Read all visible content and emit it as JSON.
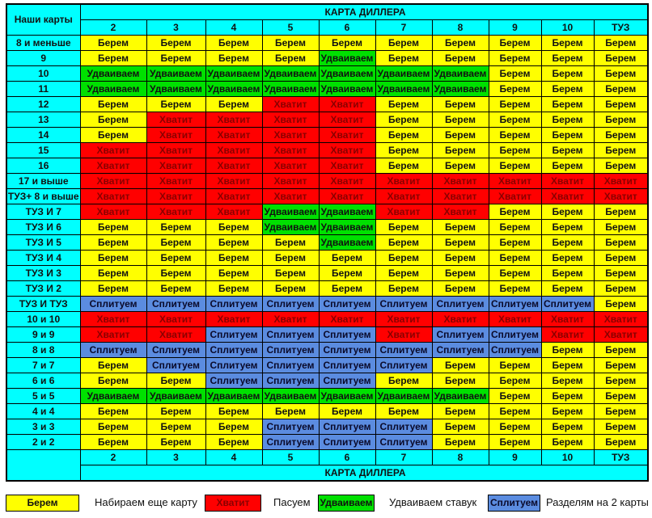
{
  "header": {
    "our_cards": "Наши карты",
    "dealer_card": "КАРТА ДИЛЛЕРА"
  },
  "dealer_columns": [
    "2",
    "3",
    "4",
    "5",
    "6",
    "7",
    "8",
    "9",
    "10",
    "ТУЗ"
  ],
  "colors": {
    "Берем": "#ffff00",
    "Хватит": "#ff0000",
    "Удваиваем": "#00e000",
    "Сплитуем": "#5b8ce0",
    "header": "#00ffff"
  },
  "rows": [
    {
      "hand": "8 и меньше",
      "actions": [
        "Берем",
        "Берем",
        "Берем",
        "Берем",
        "Берем",
        "Берем",
        "Берем",
        "Берем",
        "Берем",
        "Берем"
      ]
    },
    {
      "hand": "9",
      "actions": [
        "Берем",
        "Берем",
        "Берем",
        "Берем",
        "Удваиваем",
        "Берем",
        "Берем",
        "Берем",
        "Берем",
        "Берем"
      ]
    },
    {
      "hand": "10",
      "actions": [
        "Удваиваем",
        "Удваиваем",
        "Удваиваем",
        "Удваиваем",
        "Удваиваем",
        "Удваиваем",
        "Удваиваем",
        "Берем",
        "Берем",
        "Берем"
      ]
    },
    {
      "hand": "11",
      "actions": [
        "Удваиваем",
        "Удваиваем",
        "Удваиваем",
        "Удваиваем",
        "Удваиваем",
        "Удваиваем",
        "Удваиваем",
        "Берем",
        "Берем",
        "Берем"
      ]
    },
    {
      "hand": "12",
      "actions": [
        "Берем",
        "Берем",
        "Берем",
        "Хватит",
        "Хватит",
        "Берем",
        "Берем",
        "Берем",
        "Берем",
        "Берем"
      ]
    },
    {
      "hand": "13",
      "actions": [
        "Берем",
        "Хватит",
        "Хватит",
        "Хватит",
        "Хватит",
        "Берем",
        "Берем",
        "Берем",
        "Берем",
        "Берем"
      ]
    },
    {
      "hand": "14",
      "actions": [
        "Берем",
        "Хватит",
        "Хватит",
        "Хватит",
        "Хватит",
        "Берем",
        "Берем",
        "Берем",
        "Берем",
        "Берем"
      ]
    },
    {
      "hand": "15",
      "actions": [
        "Хватит",
        "Хватит",
        "Хватит",
        "Хватит",
        "Хватит",
        "Берем",
        "Берем",
        "Берем",
        "Берем",
        "Берем"
      ]
    },
    {
      "hand": "16",
      "actions": [
        "Хватит",
        "Хватит",
        "Хватит",
        "Хватит",
        "Хватит",
        "Берем",
        "Берем",
        "Берем",
        "Берем",
        "Берем"
      ]
    },
    {
      "hand": "17 и выше",
      "actions": [
        "Хватит",
        "Хватит",
        "Хватит",
        "Хватит",
        "Хватит",
        "Хватит",
        "Хватит",
        "Хватит",
        "Хватит",
        "Хватит"
      ]
    },
    {
      "hand": "ТУЗ+ 8 и выше",
      "actions": [
        "Хватит",
        "Хватит",
        "Хватит",
        "Хватит",
        "Хватит",
        "Хватит",
        "Хватит",
        "Хватит",
        "Хватит",
        "Хватит"
      ]
    },
    {
      "hand": "ТУЗ И 7",
      "actions": [
        "Хватит",
        "Хватит",
        "Хватит",
        "Удваиваем",
        "Удваиваем",
        "Хватит",
        "Хватит",
        "Берем",
        "Берем",
        "Берем"
      ]
    },
    {
      "hand": "ТУЗ И 6",
      "actions": [
        "Берем",
        "Берем",
        "Берем",
        "Удваиваем",
        "Удваиваем",
        "Берем",
        "Берем",
        "Берем",
        "Берем",
        "Берем"
      ]
    },
    {
      "hand": "ТУЗ И 5",
      "actions": [
        "Берем",
        "Берем",
        "Берем",
        "Берем",
        "Удваиваем",
        "Берем",
        "Берем",
        "Берем",
        "Берем",
        "Берем"
      ]
    },
    {
      "hand": "ТУЗ И 4",
      "actions": [
        "Берем",
        "Берем",
        "Берем",
        "Берем",
        "Берем",
        "Берем",
        "Берем",
        "Берем",
        "Берем",
        "Берем"
      ]
    },
    {
      "hand": "ТУЗ И 3",
      "actions": [
        "Берем",
        "Берем",
        "Берем",
        "Берем",
        "Берем",
        "Берем",
        "Берем",
        "Берем",
        "Берем",
        "Берем"
      ]
    },
    {
      "hand": "ТУЗ И 2",
      "actions": [
        "Берем",
        "Берем",
        "Берем",
        "Берем",
        "Берем",
        "Берем",
        "Берем",
        "Берем",
        "Берем",
        "Берем"
      ]
    },
    {
      "hand": "ТУЗ И ТУЗ",
      "actions": [
        "Сплитуем",
        "Сплитуем",
        "Сплитуем",
        "Сплитуем",
        "Сплитуем",
        "Сплитуем",
        "Сплитуем",
        "Сплитуем",
        "Сплитуем",
        "Берем"
      ]
    },
    {
      "hand": "10 и 10",
      "actions": [
        "Хватит",
        "Хватит",
        "Хватит",
        "Хватит",
        "Хватит",
        "Хватит",
        "Хватит",
        "Хватит",
        "Хватит",
        "Хватит"
      ]
    },
    {
      "hand": "9 и 9",
      "actions": [
        "Хватит",
        "Хватит",
        "Сплитуем",
        "Сплитуем",
        "Сплитуем",
        "Хватит",
        "Сплитуем",
        "Сплитуем",
        "Хватит",
        "Хватит"
      ]
    },
    {
      "hand": "8 и 8",
      "actions": [
        "Сплитуем",
        "Сплитуем",
        "Сплитуем",
        "Сплитуем",
        "Сплитуем",
        "Сплитуем",
        "Сплитуем",
        "Сплитуем",
        "Берем",
        "Берем"
      ]
    },
    {
      "hand": "7 и 7",
      "actions": [
        "Берем",
        "Сплитуем",
        "Сплитуем",
        "Сплитуем",
        "Сплитуем",
        "Сплитуем",
        "Берем",
        "Берем",
        "Берем",
        "Берем"
      ]
    },
    {
      "hand": "6 и 6",
      "actions": [
        "Берем",
        "Берем",
        "Сплитуем",
        "Сплитуем",
        "Сплитуем",
        "Берем",
        "Берем",
        "Берем",
        "Берем",
        "Берем"
      ]
    },
    {
      "hand": "5 и 5",
      "actions": [
        "Удваиваем",
        "Удваиваем",
        "Удваиваем",
        "Удваиваем",
        "Удваиваем",
        "Удваиваем",
        "Удваиваем",
        "Берем",
        "Берем",
        "Берем"
      ]
    },
    {
      "hand": "4 и 4",
      "actions": [
        "Берем",
        "Берем",
        "Берем",
        "Берем",
        "Берем",
        "Берем",
        "Берем",
        "Берем",
        "Берем",
        "Берем"
      ]
    },
    {
      "hand": "3 и 3",
      "actions": [
        "Берем",
        "Берем",
        "Берем",
        "Сплитуем",
        "Сплитуем",
        "Сплитуем",
        "Берем",
        "Берем",
        "Берем",
        "Берем"
      ]
    },
    {
      "hand": "2 и 2",
      "actions": [
        "Берем",
        "Берем",
        "Берем",
        "Сплитуем",
        "Сплитуем",
        "Сплитуем",
        "Берем",
        "Берем",
        "Берем",
        "Берем"
      ]
    }
  ],
  "legend": [
    {
      "label": "Берем",
      "description": "Набираем еще карту"
    },
    {
      "label": "Хватит",
      "description": "Пасуем"
    },
    {
      "label": "Удваиваем",
      "description": "Удваиваем ставук"
    },
    {
      "label": "Сплитуем",
      "description": "Разделям на 2 карты"
    }
  ]
}
